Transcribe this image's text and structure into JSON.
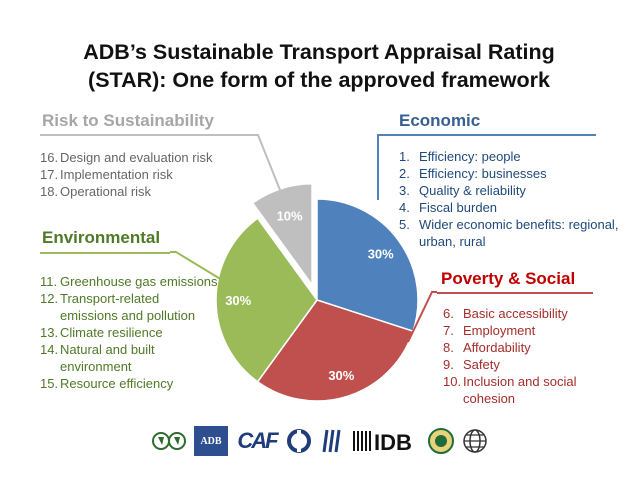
{
  "title_line1": "ADB’s Sustainable Transport Appraisal Rating",
  "title_line2": "(STAR): One form of the approved framework",
  "sections": {
    "risk": {
      "heading": "Risk to Sustainability",
      "items": [
        {
          "num": "16.",
          "text": "Design and evaluation risk"
        },
        {
          "num": "17.",
          "text": "Implementation risk"
        },
        {
          "num": "18.",
          "text": "Operational risk"
        }
      ]
    },
    "environmental": {
      "heading": "Environmental",
      "items": [
        {
          "num": "11.",
          "text": "Greenhouse gas emissions"
        },
        {
          "num": "12.",
          "text": "Transport-related emissions and pollution"
        },
        {
          "num": "13.",
          "text": "Climate resilience"
        },
        {
          "num": "14.",
          "text": "Natural and built environment"
        },
        {
          "num": "15.",
          "text": "Resource efficiency"
        }
      ]
    },
    "economic": {
      "heading": "Economic",
      "items": [
        {
          "num": "1.",
          "text": "Efficiency: people"
        },
        {
          "num": "2.",
          "text": "Efficiency: businesses"
        },
        {
          "num": "3.",
          "text": "Quality & reliability"
        },
        {
          "num": "4.",
          "text": "Fiscal burden"
        },
        {
          "num": "5.",
          "text": "Wider economic benefits: regional, urban, rural"
        }
      ]
    },
    "poverty": {
      "heading": "Poverty & Social",
      "items": [
        {
          "num": "6.",
          "text": "Basic accessibility"
        },
        {
          "num": "7.",
          "text": "Employment"
        },
        {
          "num": "8.",
          "text": "Affordability"
        },
        {
          "num": "9.",
          "text": "Safety"
        },
        {
          "num": "10.",
          "text": "Inclusion and social cohesion"
        }
      ]
    }
  },
  "chart_data": {
    "type": "pie",
    "start_angle_deg": 0,
    "direction": "clockwise",
    "slices": [
      {
        "name": "Economic",
        "value": 30,
        "label": "30%",
        "color": "#4f81bd"
      },
      {
        "name": "Poverty & Social",
        "value": 30,
        "label": "30%",
        "color": "#c0504d"
      },
      {
        "name": "Environmental",
        "value": 30,
        "label": "30%",
        "color": "#9bbb59"
      },
      {
        "name": "Risk to Sustainability",
        "value": 10,
        "label": "10%",
        "color": "#bfbfbf"
      }
    ]
  },
  "logos": [
    "AfDB",
    "ADB",
    "CAF",
    "EBRD",
    "EIB",
    "IDB",
    "IsDB",
    "World Bank"
  ]
}
